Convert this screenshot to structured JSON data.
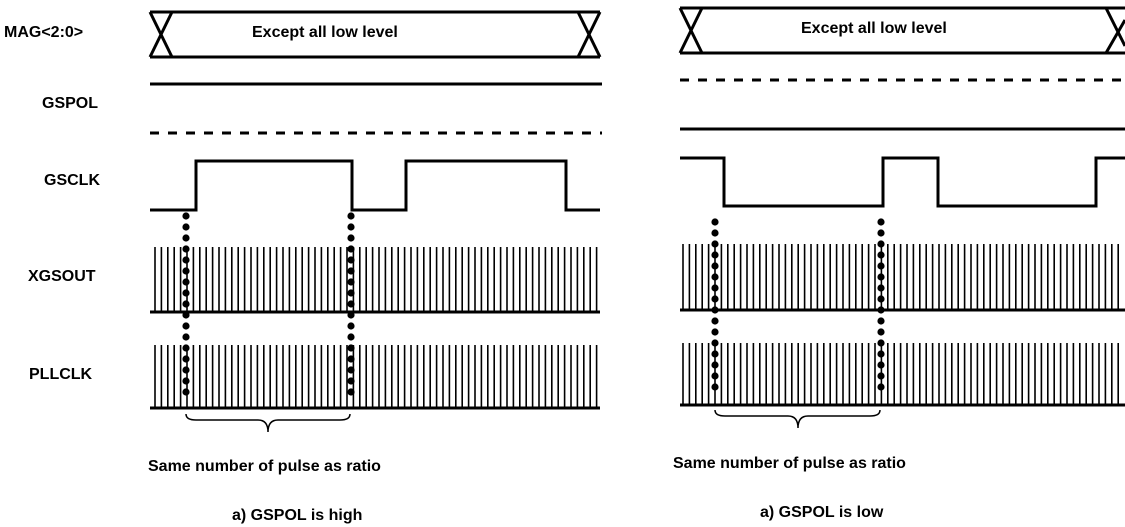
{
  "signal_labels": {
    "mag": "MAG<2:0>",
    "gspol": "GSPOL",
    "gsclk": "GSCLK",
    "xgsout": "XGSOUT",
    "pllclk": "PLLCLK"
  },
  "panel_a": {
    "bus_text": "Except all low level",
    "brace_caption": "Same number of pulse as ratio",
    "title": "a) GSPOL is high"
  },
  "panel_b": {
    "bus_text": "Except all low level",
    "brace_caption": "Same number of pulse as ratio",
    "title": "a) GSPOL is low"
  },
  "colors": {
    "line": "#000000",
    "background": "#ffffff"
  }
}
